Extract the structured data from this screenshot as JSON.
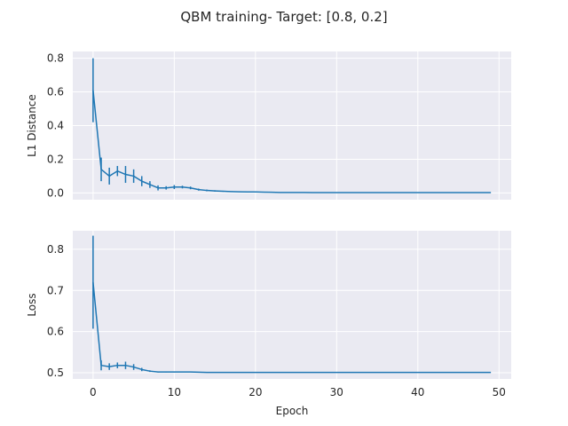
{
  "figure": {
    "title": "QBM training- Target: [0.8, 0.2]"
  },
  "colors": {
    "axes_bg": "#eaeaf2",
    "grid": "#ffffff",
    "line": "#1f77b4",
    "text": "#262626"
  },
  "chart_data": [
    {
      "type": "line",
      "panel": "top",
      "title": "",
      "xlabel": "",
      "ylabel": "L1 Distance",
      "xlim": [
        -2.5,
        51.5
      ],
      "ylim": [
        -0.04,
        0.84
      ],
      "xticks": [
        0,
        10,
        20,
        30,
        40,
        50
      ],
      "xtick_labels": [
        "",
        "",
        "",
        "",
        "",
        ""
      ],
      "yticks": [
        0.0,
        0.2,
        0.4,
        0.6,
        0.8
      ],
      "ytick_labels": [
        "0.0",
        "0.2",
        "0.4",
        "0.6",
        "0.8"
      ],
      "grid": true,
      "series": [
        {
          "x": [
            0,
            1,
            2,
            3,
            4,
            5,
            6,
            7,
            8,
            9,
            10,
            11,
            12,
            13,
            14,
            15,
            16,
            17,
            18,
            19,
            20,
            21,
            22,
            23,
            24,
            25,
            26,
            27,
            28,
            29,
            30,
            31,
            32,
            33,
            34,
            35,
            36,
            37,
            38,
            39,
            40,
            41,
            42,
            43,
            44,
            45,
            46,
            47,
            48,
            49
          ],
          "y": [
            0.61,
            0.14,
            0.1,
            0.13,
            0.11,
            0.1,
            0.07,
            0.05,
            0.03,
            0.03,
            0.035,
            0.035,
            0.03,
            0.02,
            0.015,
            0.012,
            0.01,
            0.008,
            0.007,
            0.006,
            0.006,
            0.005,
            0.004,
            0.003,
            0.003,
            0.003,
            0.003,
            0.002,
            0.002,
            0.002,
            0.002,
            0.002,
            0.002,
            0.002,
            0.002,
            0.002,
            0.002,
            0.002,
            0.002,
            0.002,
            0.002,
            0.002,
            0.002,
            0.002,
            0.002,
            0.002,
            0.002,
            0.002,
            0.002,
            0.002
          ],
          "err": [
            0.19,
            0.07,
            0.05,
            0.03,
            0.05,
            0.04,
            0.03,
            0.02,
            0.015,
            0.01,
            0.012,
            0.008,
            0.008,
            0.006,
            0.005,
            0.004,
            0.003,
            0.002,
            0.002,
            0.002,
            0.002,
            0.002,
            0.002,
            0,
            0,
            0,
            0,
            0,
            0,
            0,
            0,
            0,
            0,
            0,
            0,
            0,
            0,
            0,
            0,
            0,
            0,
            0,
            0,
            0,
            0,
            0,
            0,
            0,
            0,
            0
          ]
        }
      ]
    },
    {
      "type": "line",
      "panel": "bottom",
      "title": "",
      "xlabel": "Epoch",
      "ylabel": "Loss",
      "xlim": [
        -2.5,
        51.5
      ],
      "ylim": [
        0.485,
        0.845
      ],
      "xticks": [
        0,
        10,
        20,
        30,
        40,
        50
      ],
      "xtick_labels": [
        "0",
        "10",
        "20",
        "30",
        "40",
        "50"
      ],
      "yticks": [
        0.5,
        0.6,
        0.7,
        0.8
      ],
      "ytick_labels": [
        "0.5",
        "0.6",
        "0.7",
        "0.8"
      ],
      "grid": true,
      "series": [
        {
          "x": [
            0,
            1,
            2,
            3,
            4,
            5,
            6,
            7,
            8,
            9,
            10,
            11,
            12,
            13,
            14,
            15,
            16,
            17,
            18,
            19,
            20,
            21,
            22,
            23,
            24,
            25,
            26,
            27,
            28,
            29,
            30,
            31,
            32,
            33,
            34,
            35,
            36,
            37,
            38,
            39,
            40,
            41,
            42,
            43,
            44,
            45,
            46,
            47,
            48,
            49
          ],
          "y": [
            0.72,
            0.518,
            0.515,
            0.518,
            0.518,
            0.514,
            0.508,
            0.504,
            0.502,
            0.502,
            0.502,
            0.502,
            0.502,
            0.5015,
            0.501,
            0.501,
            0.501,
            0.501,
            0.501,
            0.501,
            0.501,
            0.501,
            0.501,
            0.501,
            0.501,
            0.501,
            0.501,
            0.501,
            0.501,
            0.501,
            0.501,
            0.501,
            0.501,
            0.501,
            0.501,
            0.501,
            0.501,
            0.501,
            0.501,
            0.501,
            0.501,
            0.501,
            0.501,
            0.501,
            0.501,
            0.501,
            0.501,
            0.501,
            0.501,
            0.501
          ],
          "err": [
            0.113,
            0.012,
            0.008,
            0.007,
            0.009,
            0.007,
            0.004,
            0.002,
            0.001,
            0.001,
            0.001,
            0,
            0,
            0,
            0,
            0,
            0,
            0,
            0,
            0,
            0,
            0,
            0,
            0,
            0,
            0,
            0,
            0,
            0,
            0,
            0,
            0,
            0,
            0,
            0,
            0,
            0,
            0,
            0,
            0,
            0,
            0,
            0,
            0,
            0,
            0,
            0,
            0,
            0,
            0
          ]
        }
      ]
    }
  ]
}
